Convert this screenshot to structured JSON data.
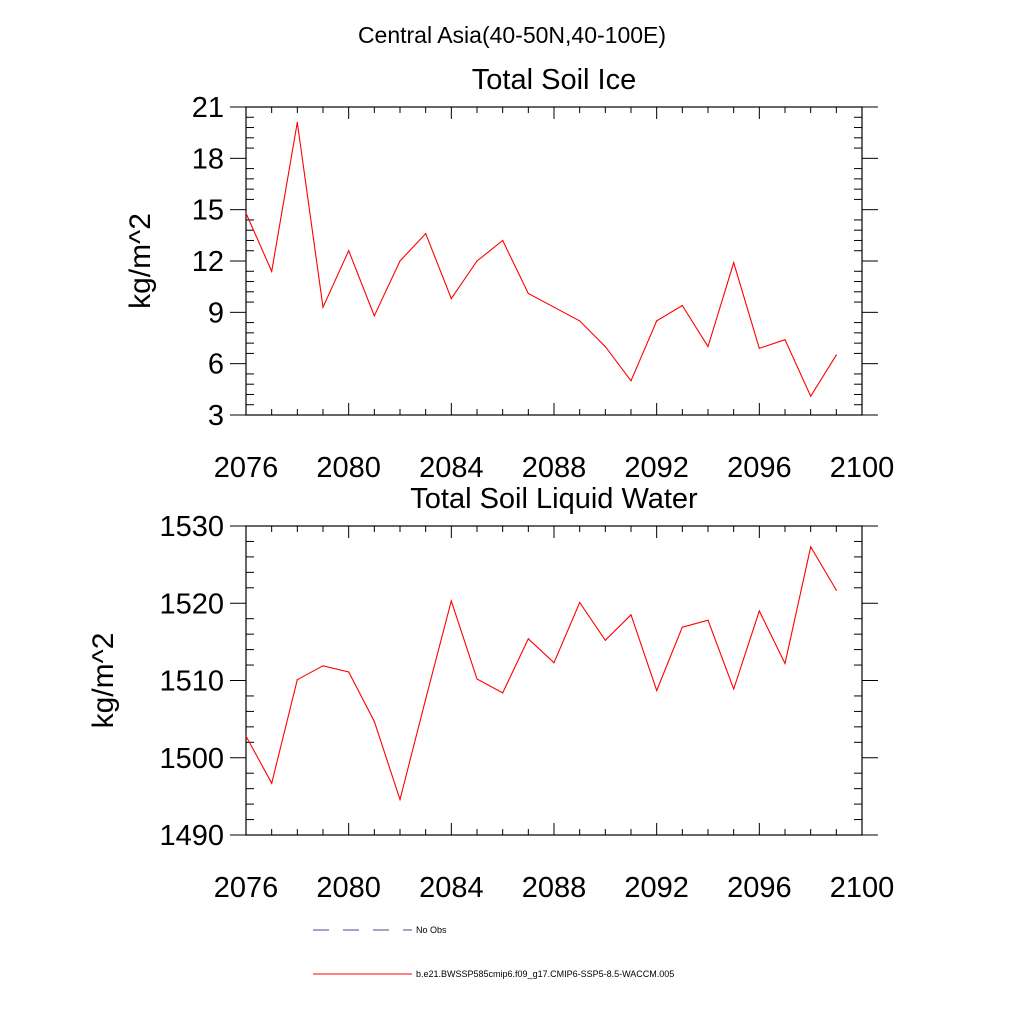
{
  "suptitle": "Central Asia(40-50N,40-100E)",
  "chart_data": [
    {
      "type": "line",
      "title": "Total Soil Ice",
      "xlabel": "",
      "ylabel": "kg/m^2",
      "xlim": [
        2076,
        2100
      ],
      "ylim": [
        3,
        21
      ],
      "xticks": [
        2076,
        2080,
        2084,
        2088,
        2092,
        2096,
        2100
      ],
      "xtick_labels": [
        "2076",
        "2080",
        "2084",
        "2088",
        "2092",
        "2096",
        "2100"
      ],
      "yticks": [
        3,
        6,
        9,
        12,
        15,
        18,
        21
      ],
      "ytick_labels": [
        "3",
        "6",
        "9",
        "12",
        "15",
        "18",
        "21"
      ],
      "series": [
        {
          "name": "b.e21.BWSSP585cmip6.f09_g17.CMIP6-SSP5-8.5-WACCM.005",
          "color": "#ff0000",
          "x": [
            2076,
            2077,
            2078,
            2079,
            2080,
            2081,
            2082,
            2083,
            2084,
            2085,
            2086,
            2087,
            2088,
            2089,
            2090,
            2091,
            2092,
            2093,
            2094,
            2095,
            2096,
            2097,
            2098,
            2099
          ],
          "values": [
            14.8,
            11.4,
            20.1,
            9.3,
            12.6,
            8.8,
            12.0,
            13.6,
            9.8,
            12.0,
            13.2,
            10.1,
            9.3,
            8.5,
            7.0,
            5.0,
            8.5,
            9.4,
            7.0,
            11.9,
            6.9,
            7.4,
            4.1,
            6.5
          ]
        }
      ]
    },
    {
      "type": "line",
      "title": "Total Soil Liquid Water",
      "xlabel": "",
      "ylabel": "kg/m^2",
      "xlim": [
        2076,
        2100
      ],
      "ylim": [
        1490,
        1530
      ],
      "xticks": [
        2076,
        2080,
        2084,
        2088,
        2092,
        2096,
        2100
      ],
      "xtick_labels": [
        "2076",
        "2080",
        "2084",
        "2088",
        "2092",
        "2096",
        "2100"
      ],
      "yticks": [
        1490,
        1500,
        1510,
        1520,
        1530
      ],
      "ytick_labels": [
        "1490",
        "1500",
        "1510",
        "1520",
        "1530"
      ],
      "series": [
        {
          "name": "b.e21.BWSSP585cmip6.f09_g17.CMIP6-SSP5-8.5-WACCM.005",
          "color": "#ff0000",
          "x": [
            2076,
            2077,
            2078,
            2079,
            2080,
            2081,
            2082,
            2083,
            2084,
            2085,
            2086,
            2087,
            2088,
            2089,
            2090,
            2091,
            2092,
            2093,
            2094,
            2095,
            2096,
            2097,
            2098,
            2099
          ],
          "values": [
            1502.8,
            1496.7,
            1510.1,
            1511.9,
            1511.1,
            1504.7,
            1494.6,
            1507.6,
            1520.3,
            1510.2,
            1508.4,
            1515.4,
            1512.3,
            1520.1,
            1515.2,
            1518.5,
            1508.7,
            1516.9,
            1517.8,
            1508.9,
            1519.0,
            1512.2,
            1527.3,
            1521.7
          ]
        }
      ]
    }
  ],
  "legend": [
    {
      "label": "No Obs",
      "color": "#4a4a8a",
      "style": "dashed"
    },
    {
      "label": "b.e21.BWSSP585cmip6.f09_g17.CMIP6-SSP5-8.5-WACCM.005",
      "color": "#ff0000",
      "style": "solid"
    }
  ]
}
